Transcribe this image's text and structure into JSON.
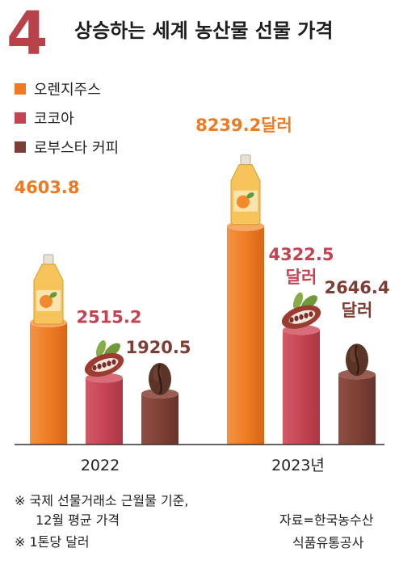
{
  "header": {
    "rank": "4",
    "title": "상승하는 세계 농산물 선물 가격"
  },
  "chart_data": {
    "type": "bar",
    "categories": [
      "2022",
      "2023년"
    ],
    "series": [
      {
        "name": "오렌지주스",
        "color": "#ee7a22",
        "values": [
          4603.8,
          8239.2
        ]
      },
      {
        "name": "코코아",
        "color": "#c44352",
        "values": [
          2515.2,
          4322.5
        ]
      },
      {
        "name": "로부스타 커피",
        "color": "#7d3f35",
        "values": [
          1920.5,
          2646.4
        ]
      }
    ],
    "data_labels": [
      [
        "4603.8",
        "2515.2",
        "1920.5"
      ],
      [
        "8239.2달러",
        "4322.5\n달러",
        "2646.4\n달러"
      ]
    ],
    "title": "상승하는 세계 농산물 선물 가격",
    "xlabel": "",
    "ylabel": "",
    "legend": "top-left",
    "grid": false
  },
  "notes": {
    "line1": "※ 국제 선물거래소 근월물 기준,",
    "line2": "12월 평균 가격",
    "line3": "※ 1톤당 달러"
  },
  "source": {
    "line1": "자료=한국농수산",
    "line2": "식품유통공사"
  }
}
